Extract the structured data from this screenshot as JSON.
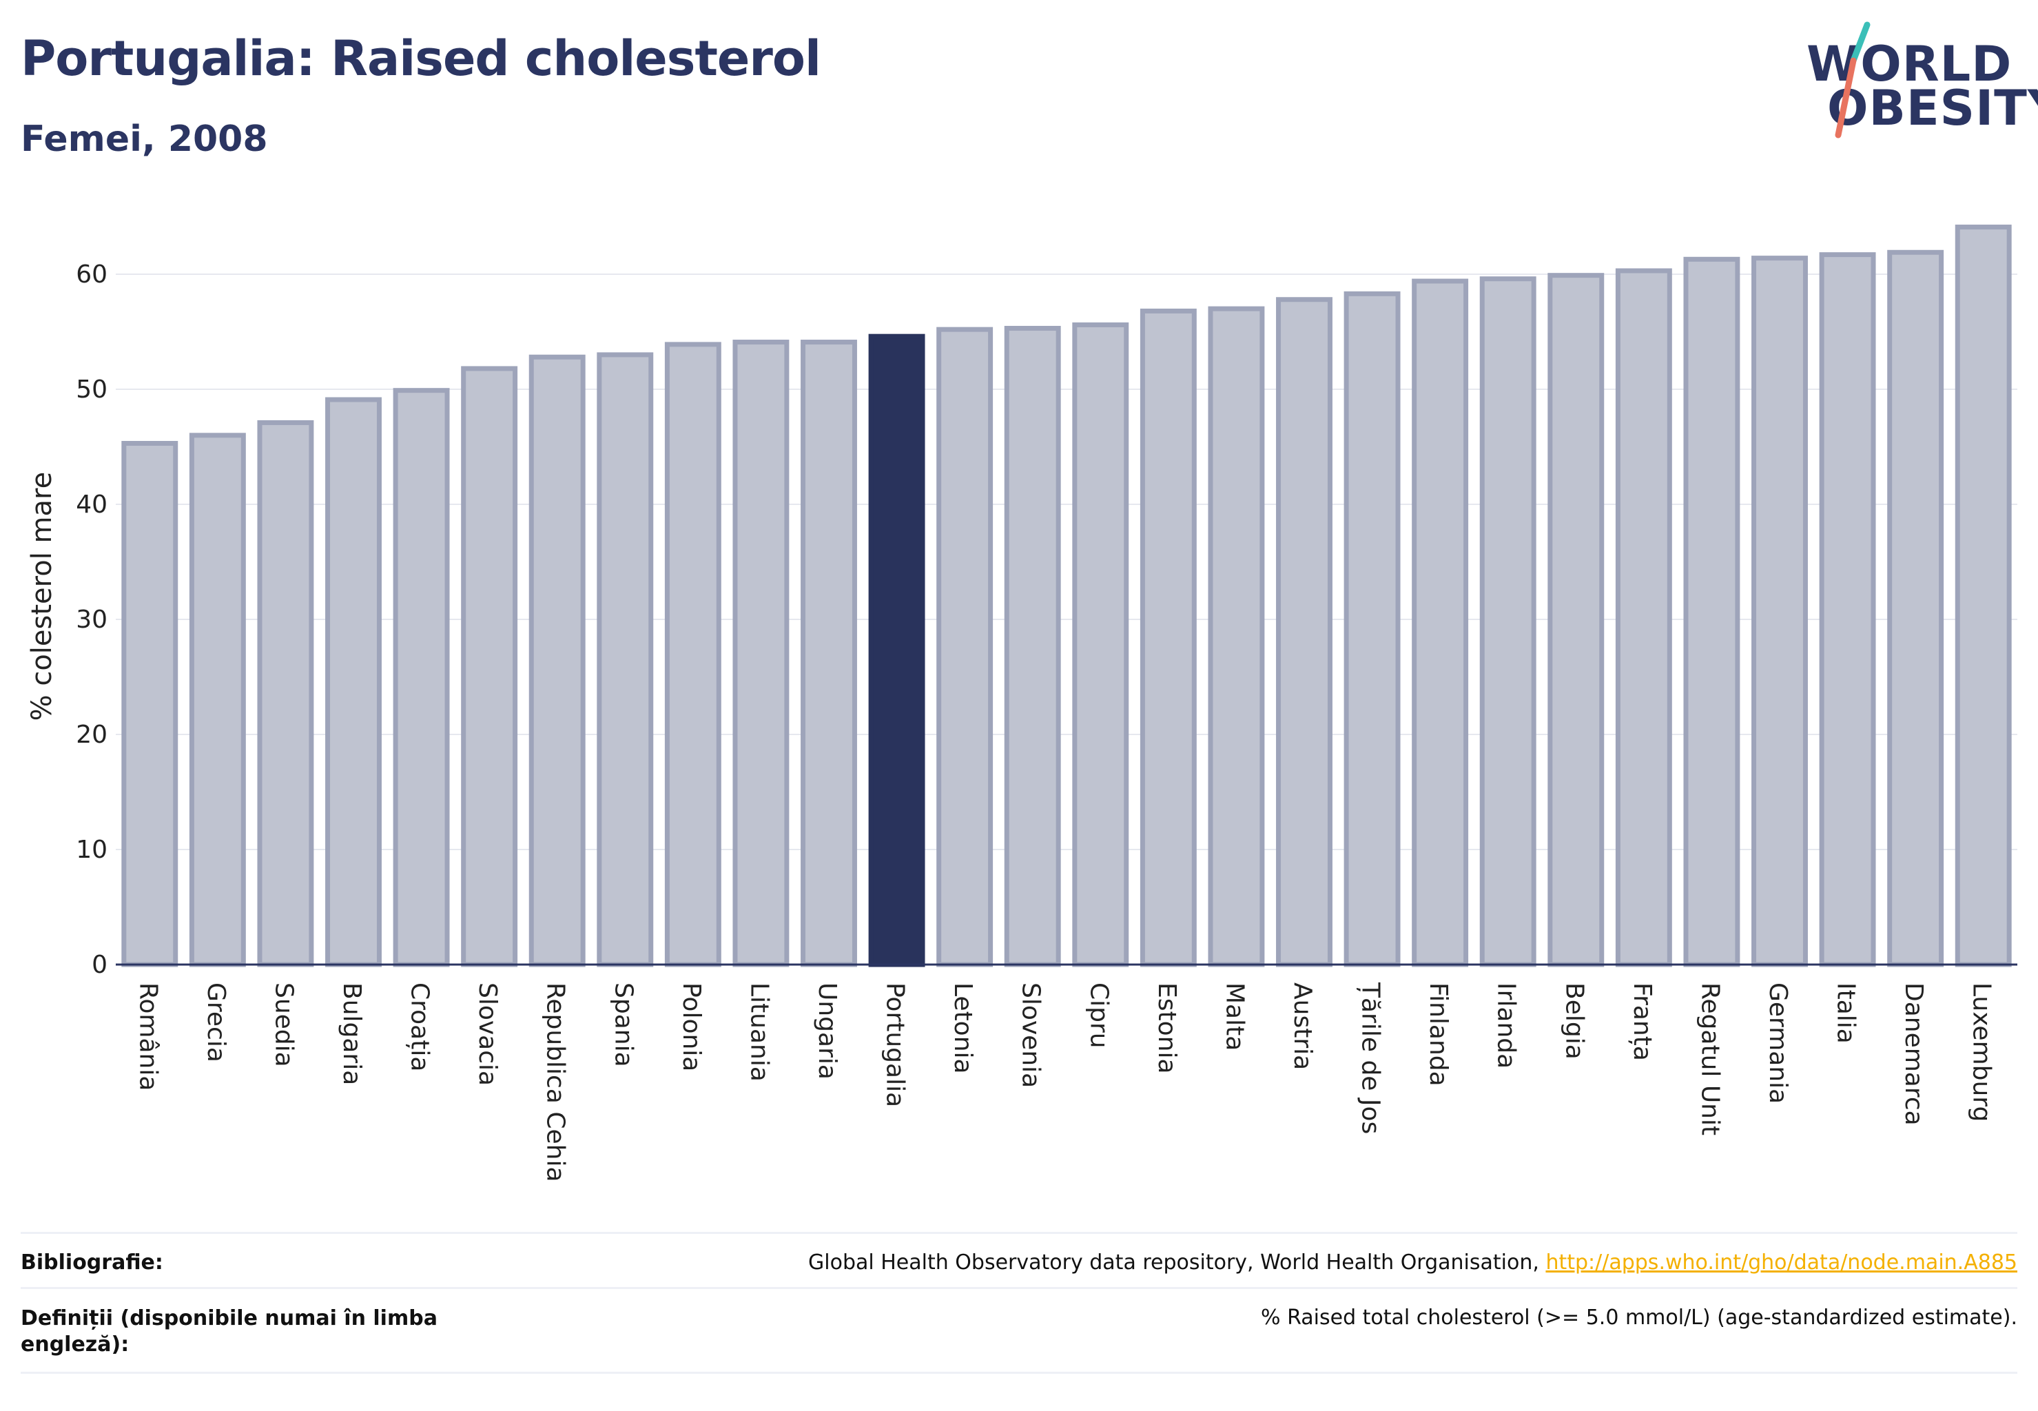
{
  "header": {
    "title": "Portugalia: Raised cholesterol",
    "subtitle": "Femei, 2008"
  },
  "logo": {
    "line1": "WORLD",
    "line2": "OBESITY"
  },
  "chart_data": {
    "type": "bar",
    "title": "Portugalia: Raised cholesterol",
    "subtitle": "Femei, 2008",
    "ylabel": "% colesterol mare",
    "xlabel": "",
    "ylim": [
      0,
      65
    ],
    "yticks": [
      0,
      10,
      20,
      30,
      40,
      50,
      60
    ],
    "grid": true,
    "highlight": "Portugalia",
    "colors": {
      "bar": "#bfc3d0",
      "bar_edge": "#9ea4ba",
      "highlight": "#29335c",
      "grid": "#e6e8ef",
      "axis": "#2b3562"
    },
    "categories": [
      "România",
      "Grecia",
      "Suedia",
      "Bulgaria",
      "Croația",
      "Slovacia",
      "Republica Cehia",
      "Spania",
      "Polonia",
      "Lituania",
      "Ungaria",
      "Portugalia",
      "Letonia",
      "Slovenia",
      "Cipru",
      "Estonia",
      "Malta",
      "Austria",
      "Țările de Jos",
      "Finlanda",
      "Irlanda",
      "Belgia",
      "Franța",
      "Regatul Unit",
      "Germania",
      "Italia",
      "Danemarca",
      "Luxemburg"
    ],
    "values": [
      45.3,
      46.0,
      47.1,
      49.1,
      49.9,
      51.8,
      52.8,
      53.0,
      53.9,
      54.1,
      54.1,
      54.6,
      55.2,
      55.3,
      55.6,
      56.8,
      57.0,
      57.8,
      58.3,
      59.4,
      59.6,
      59.9,
      60.3,
      61.3,
      61.4,
      61.7,
      61.9,
      64.1
    ]
  },
  "footer": {
    "bibliography_label": "Bibliografie:",
    "bibliography_text": "Global Health Observatory data repository, World Health Organisation, ",
    "bibliography_link": "http://apps.who.int/gho/data/node.main.A885",
    "definitions_label": "Definiții (disponibile numai în limba engleză):",
    "definitions_text": "% Raised total cholesterol (>= 5.0 mmol/L) (age-standardized estimate)."
  }
}
